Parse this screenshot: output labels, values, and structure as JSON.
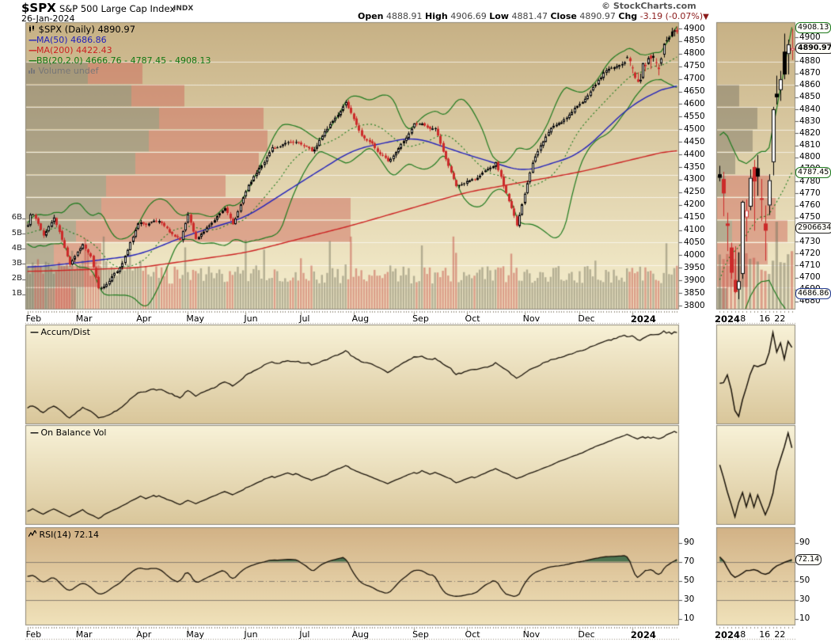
{
  "header": {
    "symbol": "$SPX",
    "name": "S&P 500 Large Cap Index",
    "exchange": "INDX",
    "date": "26-Jan-2024",
    "copyright": "© StockCharts.com",
    "quote": {
      "open_label": "Open",
      "open": "4888.91",
      "high_label": "High",
      "high": "4906.69",
      "low_label": "Low",
      "low": "4881.47",
      "close_label": "Close",
      "close": "4890.97",
      "chg_label": "Chg",
      "chg": "-3.19 (-0.07%)",
      "chg_arrow": "▼"
    }
  },
  "legend": {
    "main": "$SPX (Daily) 4890.97",
    "ma50": "MA(50) 4686.86",
    "ma200": "MA(200) 4422.43",
    "bb": "BB(20,2.0) 4666.76 - 4787.45 - 4908.13",
    "volume": "Volume undef"
  },
  "panels": {
    "accum_dist_label": "Accum/Dist",
    "obv_label": "On Balance Vol",
    "rsi_label": "RSI(14) 72.14"
  },
  "price_tags": {
    "bb_upper": "4908.13",
    "last": "4890.97",
    "bb_mid": "4787.45",
    "volume": "2906634",
    "ma50": "4686.86",
    "rsi": "72.14"
  },
  "colors": {
    "ma50": "#2222bb",
    "ma200": "#cc2222",
    "bb": "#1e7a1e",
    "candle_up": "#000000",
    "candle_down": "#cc2a2a",
    "vol_up": "rgba(120,118,95,0.5)",
    "vol_down": "rgba(195,80,70,0.5)",
    "vbp_gray": "rgba(115,110,95,0.45)",
    "vbp_red": "rgba(205,95,85,0.45)",
    "line": "#1b140a",
    "rsi_fill": "#4c7350",
    "grid": "#8b8070"
  },
  "chart_data": {
    "type": "candlestick",
    "symbol": "$SPX",
    "timeframe": "Daily",
    "x_range": [
      "2023-02-01",
      "2024-01-26"
    ],
    "price_axis": {
      "min": 3800,
      "max": 4900,
      "step": 50
    },
    "mini_axis": {
      "min": 4680,
      "max": 4900,
      "step": 10
    },
    "volume_axis_ticks": [
      "1B",
      "2B",
      "3B",
      "4B",
      "5B",
      "6B"
    ],
    "rsi_axis": {
      "ticks": [
        10,
        30,
        50,
        70,
        90
      ],
      "overbought": 70,
      "mid": 50,
      "oversold": 30,
      "last": 72.14
    },
    "months": [
      "Feb",
      "Mar",
      "Apr",
      "May",
      "Jun",
      "Jul",
      "Aug",
      "Sep",
      "Oct",
      "Nov",
      "Dec",
      "2024"
    ],
    "mini_date_ticks": [
      [
        "2024-01-02",
        "2024"
      ],
      [
        "2024-01-08",
        "8"
      ],
      [
        "2024-01-16",
        "16"
      ],
      [
        "2024-01-22",
        "22"
      ]
    ],
    "ohlc_last": {
      "open": 4888.91,
      "high": 4906.69,
      "low": 4881.47,
      "close": 4890.97,
      "chg": -3.19,
      "chg_pct": -0.07
    },
    "indicators_last": {
      "ma50": 4686.86,
      "ma200": 4422.43,
      "bb_lower": 4666.76,
      "bb_mid": 4787.45,
      "bb_upper": 4908.13,
      "rsi14": 72.14
    },
    "close_anchors": [
      [
        "2023-02-01",
        4119
      ],
      [
        "2023-02-02",
        4180
      ],
      [
        "2023-02-09",
        4081
      ],
      [
        "2023-02-15",
        4148
      ],
      [
        "2023-02-24",
        3970
      ],
      [
        "2023-03-03",
        4046
      ],
      [
        "2023-03-08",
        3992
      ],
      [
        "2023-03-13",
        3856
      ],
      [
        "2023-03-22",
        3937
      ],
      [
        "2023-03-24",
        3971
      ],
      [
        "2023-04-03",
        4124
      ],
      [
        "2023-04-14",
        4138
      ],
      [
        "2023-04-26",
        4056
      ],
      [
        "2023-05-01",
        4168
      ],
      [
        "2023-05-04",
        4061
      ],
      [
        "2023-05-19",
        4192
      ],
      [
        "2023-05-24",
        4115
      ],
      [
        "2023-06-02",
        4282
      ],
      [
        "2023-06-15",
        4426
      ],
      [
        "2023-06-30",
        4450
      ],
      [
        "2023-07-10",
        4410
      ],
      [
        "2023-07-27",
        4607
      ],
      [
        "2023-08-04",
        4478
      ],
      [
        "2023-08-18",
        4370
      ],
      [
        "2023-09-01",
        4516
      ],
      [
        "2023-09-14",
        4505
      ],
      [
        "2023-09-26",
        4274
      ],
      [
        "2023-10-06",
        4309
      ],
      [
        "2023-10-17",
        4373
      ],
      [
        "2023-10-27",
        4117
      ],
      [
        "2023-11-03",
        4358
      ],
      [
        "2023-11-15",
        4503
      ],
      [
        "2023-12-01",
        4594
      ],
      [
        "2023-12-14",
        4720
      ],
      [
        "2023-12-28",
        4783
      ]
    ],
    "ma50_anchors": [
      [
        "2023-02-01",
        3950
      ],
      [
        "2023-03-01",
        3970
      ],
      [
        "2023-04-01",
        4000
      ],
      [
        "2023-05-01",
        4080
      ],
      [
        "2023-06-01",
        4150
      ],
      [
        "2023-07-01",
        4290
      ],
      [
        "2023-08-01",
        4420
      ],
      [
        "2023-09-01",
        4470
      ],
      [
        "2023-10-01",
        4400
      ],
      [
        "2023-11-01",
        4330
      ],
      [
        "2023-12-01",
        4400
      ],
      [
        "2024-01-01",
        4600
      ],
      [
        "2024-01-26",
        4687
      ]
    ],
    "ma200_anchors": [
      [
        "2023-02-01",
        3935
      ],
      [
        "2023-04-01",
        3950
      ],
      [
        "2023-06-01",
        4010
      ],
      [
        "2023-08-01",
        4120
      ],
      [
        "2023-10-01",
        4250
      ],
      [
        "2023-12-01",
        4330
      ],
      [
        "2024-01-26",
        4422
      ]
    ],
    "recent_ohlc": [
      [
        4786,
        4793,
        4780,
        4783
      ],
      [
        4782,
        4788,
        4751,
        4770
      ],
      [
        4745,
        4754,
        4722,
        4743
      ],
      [
        4725,
        4729,
        4699,
        4704
      ],
      [
        4698,
        4726,
        4687,
        4688
      ],
      [
        4690,
        4721,
        4682,
        4697
      ],
      [
        4703,
        4764,
        4699,
        4763
      ],
      [
        4750,
        4765,
        4730,
        4756
      ],
      [
        4759,
        4790,
        4756,
        4783
      ],
      [
        4792,
        4798,
        4739,
        4780
      ],
      [
        4791,
        4802,
        4768,
        4784
      ],
      [
        4766,
        4782,
        4747,
        4766
      ],
      [
        4745,
        4760,
        4714,
        4739
      ],
      [
        4760,
        4786,
        4752,
        4781
      ],
      [
        4796,
        4842,
        4785,
        4840
      ],
      [
        4853,
        4868,
        4844,
        4850
      ],
      [
        4856,
        4872,
        4847,
        4865
      ],
      [
        4888,
        4903,
        4865,
        4869
      ],
      [
        4886,
        4898,
        4869,
        4894
      ],
      [
        4889,
        4907,
        4881,
        4891
      ]
    ],
    "volume_profile_rows": [
      [
        79,
        148
      ],
      [
        134,
        201
      ],
      [
        169,
        301
      ],
      [
        156,
        306
      ],
      [
        139,
        295
      ],
      [
        102,
        253
      ],
      [
        96,
        411
      ],
      [
        64,
        411
      ],
      [
        36,
        96
      ],
      [
        58,
        96
      ],
      [
        28,
        64
      ]
    ],
    "mini_profile_rows": [
      [
        0,
        0
      ],
      [
        29,
        0
      ],
      [
        52,
        0
      ],
      [
        46,
        0
      ],
      [
        24,
        0
      ],
      [
        12,
        55
      ],
      [
        0,
        75
      ],
      [
        20,
        70
      ],
      [
        0,
        65
      ],
      [
        0,
        40
      ],
      [
        14,
        0
      ]
    ],
    "noise_seed": 11
  }
}
